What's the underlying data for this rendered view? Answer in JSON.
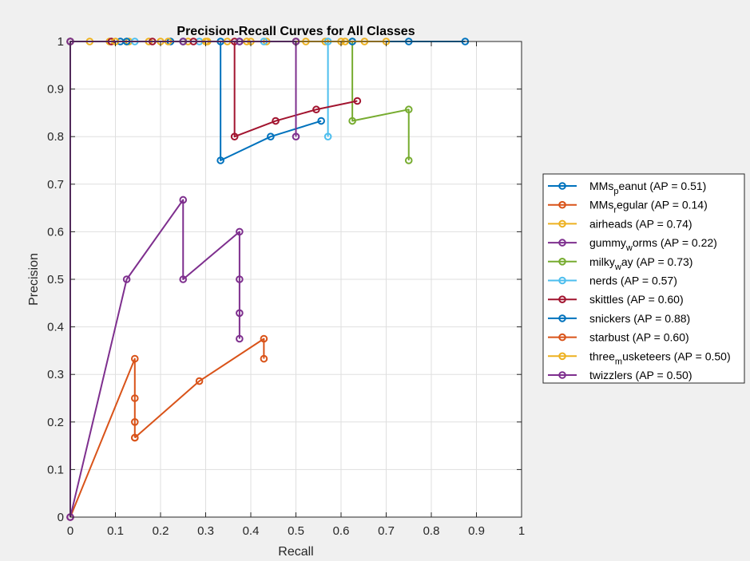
{
  "chart_data": {
    "type": "line",
    "title": "Precision-Recall Curves for All Classes",
    "xlabel": "Recall",
    "ylabel": "Precision",
    "xlim": [
      0,
      1
    ],
    "ylim": [
      0,
      1
    ],
    "xticks": [
      "0",
      "0.1",
      "0.2",
      "0.3",
      "0.4",
      "0.5",
      "0.6",
      "0.7",
      "0.8",
      "0.9",
      "1"
    ],
    "yticks": [
      "0",
      "0.1",
      "0.2",
      "0.3",
      "0.4",
      "0.5",
      "0.6",
      "0.7",
      "0.8",
      "0.9",
      "1"
    ],
    "grid": true,
    "legend_position": "right",
    "series": [
      {
        "name": "MMs_peanut",
        "label_main": "MMs",
        "label_sub": "p",
        "label_rest": "eanut (AP = 0.51)",
        "color": "#0072BD",
        "x": [
          0,
          0.111,
          0.222,
          0.333,
          0.333,
          0.444,
          0.556
        ],
        "y": [
          1,
          1,
          1,
          1,
          0.75,
          0.8,
          0.833
        ]
      },
      {
        "name": "MMs_regular",
        "label_main": "MMs",
        "label_sub": "r",
        "label_rest": "egular (AP = 0.14)",
        "color": "#D95319",
        "x": [
          0,
          0.143,
          0.143,
          0.143,
          0.143
        ],
        "y": [
          0,
          0.333,
          0.25,
          0.2,
          0.167
        ]
      },
      {
        "name": "airheads",
        "label_main": "airheads (AP = 0.74)",
        "label_sub": "",
        "label_rest": "",
        "color": "#EDB120",
        "x": [
          0,
          0.043,
          0.087,
          0.13,
          0.174,
          0.217,
          0.261,
          0.304,
          0.348,
          0.391,
          0.435,
          0.522,
          0.565,
          0.609,
          0.652
        ],
        "y": [
          1,
          1,
          1,
          1,
          1,
          1,
          1,
          1,
          1,
          1,
          1,
          1,
          1,
          1,
          1
        ]
      },
      {
        "name": "gummy_worms",
        "label_main": "gummy",
        "label_sub": "w",
        "label_rest": "orms (AP = 0.22)",
        "color": "#7E2F8E",
        "x": [
          0,
          0.125,
          0.25,
          0.25,
          0.375,
          0.375,
          0.375,
          0.375
        ],
        "y": [
          0,
          0.5,
          0.667,
          0.5,
          0.6,
          0.5,
          0.429,
          0.375
        ]
      },
      {
        "name": "milky_way",
        "label_main": "milky",
        "label_sub": "w",
        "label_rest": "ay (AP = 0.73)",
        "color": "#77AC30",
        "x": [
          0,
          0.125,
          0.25,
          0.375,
          0.5,
          0.625,
          0.625,
          0.75,
          0.75
        ],
        "y": [
          1,
          1,
          1,
          1,
          1,
          1,
          0.833,
          0.857,
          0.75
        ]
      },
      {
        "name": "nerds",
        "label_main": "nerds (AP = 0.57)",
        "label_sub": "",
        "label_rest": "",
        "color": "#4DBEEE",
        "x": [
          0,
          0.143,
          0.286,
          0.429,
          0.571,
          0.571
        ],
        "y": [
          1,
          1,
          1,
          1,
          1,
          0.8
        ]
      },
      {
        "name": "skittles",
        "label_main": "skittles (AP = 0.60)",
        "label_sub": "",
        "label_rest": "",
        "color": "#A2142F",
        "x": [
          0,
          0.091,
          0.182,
          0.273,
          0.364,
          0.364,
          0.455,
          0.545,
          0.636
        ],
        "y": [
          1,
          1,
          1,
          1,
          1,
          0.8,
          0.833,
          0.857,
          0.875
        ]
      },
      {
        "name": "snickers",
        "label_main": "snickers (AP = 0.88)",
        "label_sub": "",
        "label_rest": "",
        "color": "#0072BD",
        "x": [
          0,
          0.125,
          0.25,
          0.375,
          0.5,
          0.625,
          0.75,
          0.875
        ],
        "y": [
          1,
          1,
          1,
          1,
          1,
          1,
          1,
          1
        ]
      },
      {
        "name": "starbust",
        "label_main": "starbust (AP = 0.60)",
        "label_sub": "",
        "label_rest": "",
        "color": "#D95319",
        "x": [
          0.143,
          0.286,
          0.429,
          0.429
        ],
        "y": [
          0.167,
          0.286,
          0.375,
          0.333
        ]
      },
      {
        "name": "three_musketeers",
        "label_main": "three",
        "label_sub": "m",
        "label_rest": "usketeers (AP = 0.50)",
        "color": "#EDB120",
        "x": [
          0,
          0.1,
          0.2,
          0.3,
          0.4,
          0.5,
          0.6,
          0.7
        ],
        "y": [
          1,
          1,
          1,
          1,
          1,
          1,
          1,
          1
        ]
      },
      {
        "name": "twizzlers",
        "label_main": "twizzlers (AP = 0.50)",
        "label_sub": "",
        "label_rest": "",
        "color": "#7E2F8E",
        "x": [
          0,
          0,
          0.25,
          0.375,
          0.5,
          0.5
        ],
        "y": [
          0,
          1,
          1,
          1,
          1,
          0.8
        ]
      }
    ]
  }
}
